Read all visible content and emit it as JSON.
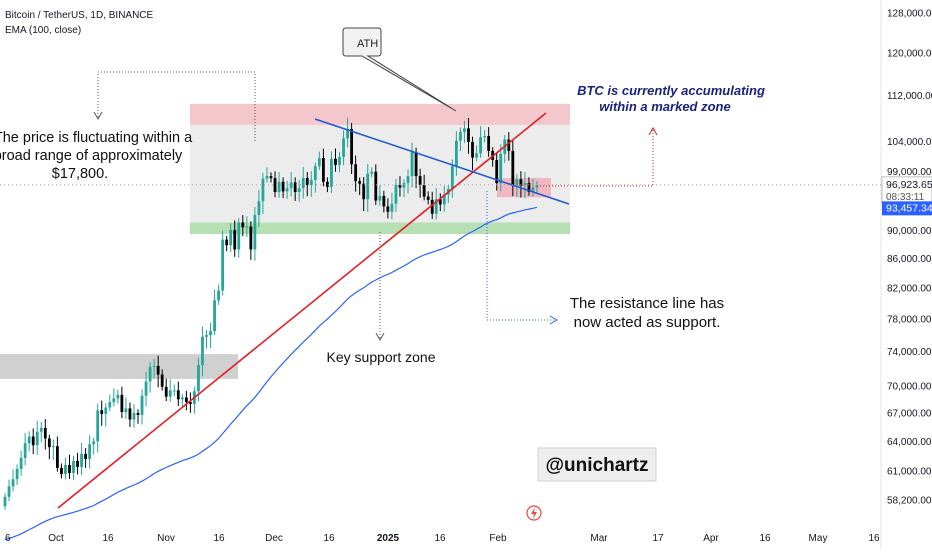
{
  "header": {
    "symbol_line": "Bitcoin / TetherUS, 1D, BINANCE",
    "indicator_line": "EMA (100, close)"
  },
  "price_axis": {
    "ticks": [
      "128,000.00",
      "120,000.00",
      "112,000.00",
      "104,000.00",
      "99,000.00",
      "90,000.00",
      "86,000.00",
      "82,000.00",
      "78,000.00",
      "74,000.00",
      "70,000.00",
      "67,000.00",
      "64,000.00",
      "61,000.00",
      "58,200.00"
    ],
    "tick_values": [
      128000,
      120000,
      112000,
      104000,
      99000,
      90000,
      86000,
      82000,
      78000,
      74000,
      70000,
      67000,
      64000,
      61000,
      58200
    ],
    "last_price": "96,923.65",
    "countdown": "08:33:11",
    "ema_value": "93,457.34",
    "last_price_value": 96923.65,
    "ema_level_value": 93457.34
  },
  "time_axis": {
    "labels": [
      "6",
      "Oct",
      "16",
      "Nov",
      "16",
      "Dec",
      "16",
      "2025",
      "16",
      "Feb",
      "Mar",
      "17",
      "Apr",
      "16",
      "May",
      "16"
    ],
    "bold_label": "2025"
  },
  "annotations": {
    "range_note": "The price is fluctuating within a broad range of approximately $17,800.",
    "range_note_lines": [
      "The price is fluctuating within a",
      "broad range of approximately",
      "$17,800."
    ],
    "ath_label": "ATH",
    "accumulation_note_lines": [
      "BTC is currently accumulating",
      "within a marked zone"
    ],
    "support_zone_label": "Key support zone",
    "resistance_note_lines": [
      "The resistance line has",
      "now acted as support."
    ],
    "watermark": "@unichartz"
  },
  "colors": {
    "bull": "#26a69a",
    "bear": "#000000",
    "ema": "#2962ff",
    "trend_up": "#e31e24",
    "trend_down": "#1e5ad6",
    "resistance_zone": "#f4c7cc",
    "support_zone": "#b7dfb4",
    "range_zone": "#ececec",
    "last_price_tag": "#ffffff",
    "ema_tag": "#2962ff"
  },
  "chart_data": {
    "type": "candlestick",
    "title": "Bitcoin / TetherUS, 1D, BINANCE",
    "ylabel": "",
    "xlabel": "",
    "scale": "log",
    "ylim": [
      56500,
      130000
    ],
    "zones": {
      "range_top": [
        106800,
        110500
      ],
      "range_bottom": [
        89500,
        91200
      ],
      "left_resistance": [
        70800,
        73700
      ],
      "accumulation": [
        95000,
        98000
      ]
    },
    "series": [
      {
        "name": "BTCUSDT",
        "kind": "ohlc",
        "note": "approximate daily closes read from the chart",
        "closes": [
          58500,
          59500,
          60200,
          61200,
          62300,
          63800,
          64500,
          63600,
          65000,
          65400,
          64300,
          63400,
          63500,
          61300,
          60700,
          61600,
          60800,
          62000,
          61400,
          62700,
          62200,
          63700,
          64000,
          67300,
          66900,
          67600,
          68200,
          68600,
          69000,
          67100,
          67500,
          66300,
          67000,
          66800,
          68900,
          70500,
          72200,
          72300,
          71300,
          69900,
          68800,
          69500,
          69500,
          68500,
          68700,
          68200,
          68000,
          69400,
          72400,
          75800,
          76000,
          76500,
          80400,
          81700,
          88700,
          87900,
          90100,
          87300,
          91200,
          90500,
          90600,
          87300,
          92300,
          94400,
          97900,
          98300,
          98000,
          95800,
          97400,
          95900,
          96400,
          97300,
          95800,
          96400,
          98000,
          96900,
          97700,
          99900,
          101200,
          97400,
          96600,
          101100,
          100100,
          101400,
          104500,
          106100,
          100200,
          97500,
          97100,
          94700,
          98700,
          99000,
          94500,
          95200,
          93600,
          92800,
          94000,
          96900,
          96500,
          97200,
          98300,
          102200,
          98300,
          96900,
          95100,
          94600,
          92500,
          94700,
          93900,
          95400,
          96300,
          99900,
          104100,
          105600,
          106200,
          103900,
          101300,
          102000,
          104700,
          104900,
          102400,
          100900,
          97200,
          101900,
          104300,
          102400,
          96800,
          97800,
          96800,
          97200,
          95800,
          96500,
          96900
        ],
        "ema_100_end": 93457.34
      }
    ]
  }
}
